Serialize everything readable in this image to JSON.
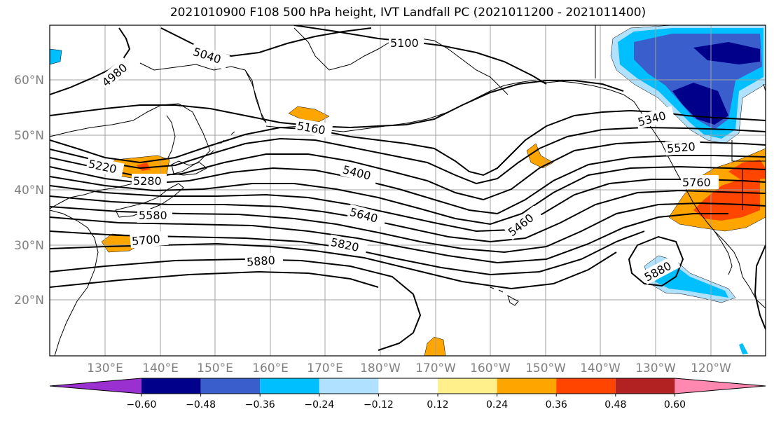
{
  "title": "2021010900 F108 500 hPa height, IVT Landfall PC (2021011200 - 2021011400)",
  "map": {
    "lat_labels": [
      "60°N",
      "50°N",
      "40°N",
      "30°N",
      "20°N"
    ],
    "lon_labels": [
      "130°E",
      "140°E",
      "150°E",
      "160°E",
      "170°E",
      "180°W",
      "170°W",
      "160°W",
      "150°W",
      "140°W",
      "130°W",
      "120°W"
    ],
    "contour_labels": [
      "5100",
      "5040",
      "4980",
      "5160",
      "5220",
      "5280",
      "5400",
      "5580",
      "5700",
      "5640",
      "5820",
      "5880",
      "5460",
      "5340",
      "5520",
      "5760",
      "5880"
    ],
    "contour_levels": [
      4980,
      5040,
      5100,
      5160,
      5220,
      5280,
      5340,
      5400,
      5460,
      5520,
      5580,
      5640,
      5700,
      5760,
      5820,
      5880
    ]
  },
  "colorbar": {
    "ticks": [
      "−0.60",
      "−0.48",
      "−0.36",
      "−0.24",
      "−0.12",
      "0.12",
      "0.24",
      "0.36",
      "0.48",
      "0.60"
    ],
    "colors": [
      "#9b30d0",
      "#00008b",
      "#3a5fcd",
      "#00bfff",
      "#b0e2ff",
      "#ffffff",
      "#fff08c",
      "#ffa500",
      "#ff4500",
      "#b22222",
      "#ff88b0"
    ]
  }
}
